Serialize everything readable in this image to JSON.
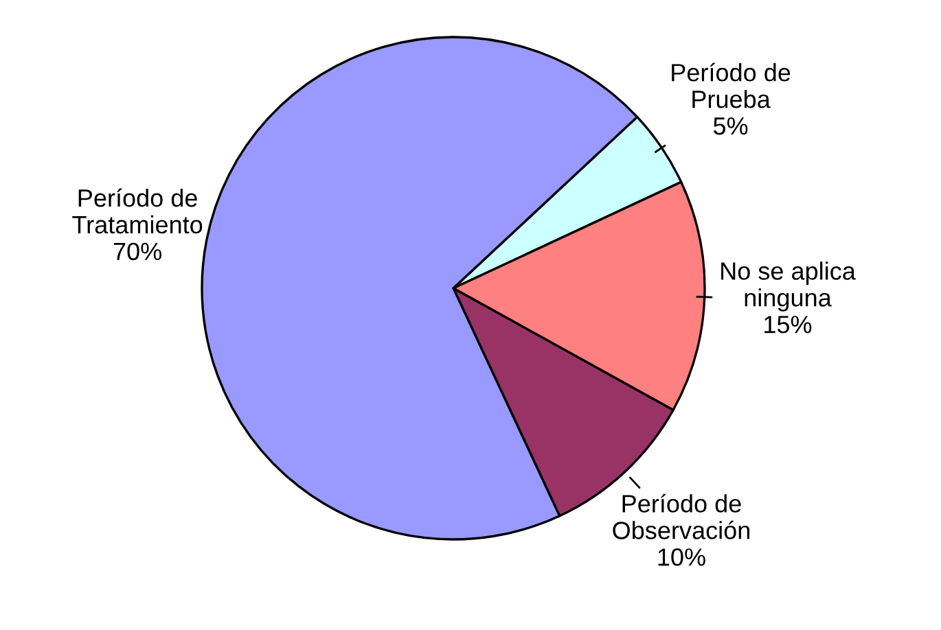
{
  "chart_data": {
    "type": "pie",
    "categories": [
      "Período de\nPrueba",
      "No se aplica\nninguna",
      "Período de\nObservación",
      "Período de\nTratamiento"
    ],
    "values": [
      5,
      15,
      10,
      70
    ],
    "colors": [
      "#ccffff",
      "#ff8080",
      "#993366",
      "#9999ff"
    ],
    "value_labels": [
      "5%",
      "15%",
      "10%",
      "70%"
    ]
  }
}
